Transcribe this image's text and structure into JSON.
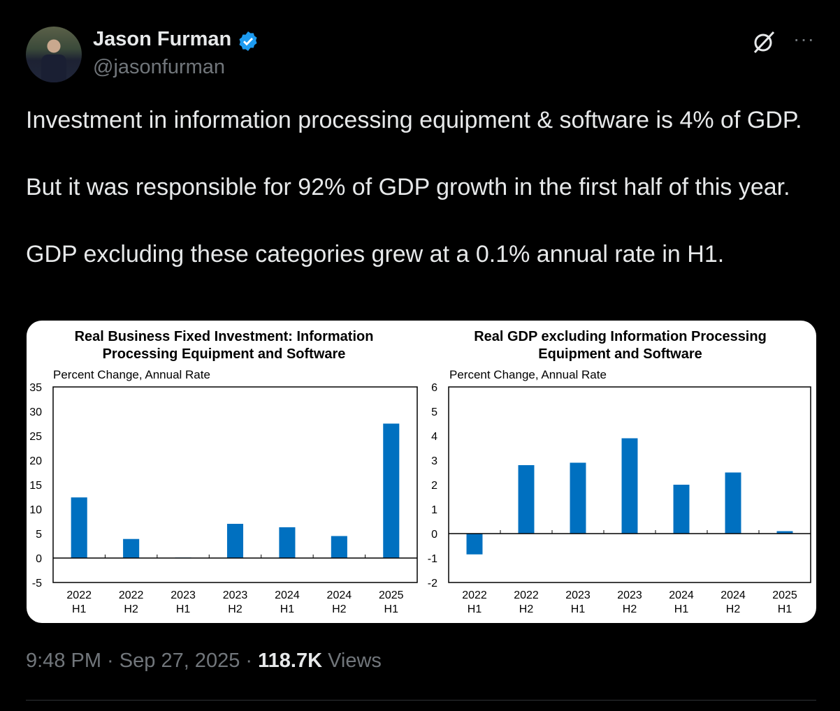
{
  "author": {
    "name": "Jason Furman",
    "handle": "@jasonfurman",
    "verified": true
  },
  "icons": {
    "verified": "verified-badge-icon",
    "grok": "grok-icon",
    "more": "more-icon"
  },
  "more_label": "···",
  "tweet": {
    "paragraphs": [
      "Investment in information processing equipment & software is 4% of GDP.",
      "But it was responsible for 92% of GDP growth in the first half of this year.",
      "GDP excluding these categories grew at a 0.1% annual rate in H1."
    ]
  },
  "footer": {
    "time": "9:48 PM",
    "date": "Sep 27, 2025",
    "views_count": "118.7K",
    "views_label": "Views"
  },
  "colors": {
    "bar": "#0070c0",
    "verified": "#1d9bf0"
  },
  "chart_data": [
    {
      "type": "bar",
      "title": "Real Business Fixed Investment: Information Processing Equipment and Software",
      "subtitle": "Percent Change, Annual Rate",
      "categories": [
        "2022 H1",
        "2022 H2",
        "2023 H1",
        "2023 H2",
        "2024 H1",
        "2024 H2",
        "2025 H1"
      ],
      "values": [
        12.4,
        3.9,
        0.1,
        7.0,
        6.3,
        4.5,
        27.5
      ],
      "ylim": [
        -5,
        35
      ],
      "yticks": [
        35,
        30,
        25,
        20,
        15,
        10,
        5,
        0,
        -5
      ],
      "grid": false
    },
    {
      "type": "bar",
      "title": "Real GDP excluding Information Processing Equipment and Software",
      "subtitle": "Percent Change, Annual Rate",
      "categories": [
        "2022 H1",
        "2022 H2",
        "2023 H1",
        "2023 H2",
        "2024 H1",
        "2024 H2",
        "2025 H1"
      ],
      "values": [
        -0.85,
        2.8,
        2.9,
        3.9,
        2.0,
        2.5,
        0.1
      ],
      "ylim": [
        -2,
        6
      ],
      "yticks": [
        6,
        5,
        4,
        3,
        2,
        1,
        0,
        -1,
        -2
      ],
      "grid": false
    }
  ]
}
